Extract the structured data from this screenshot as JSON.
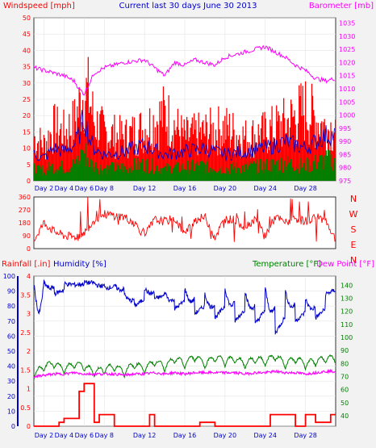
{
  "colors": {
    "wind": "#ff0000",
    "gust": "#ff0000",
    "avg_wind": "#0000cc",
    "barometer": "#ff00ff",
    "wind_dir": "#ff0000",
    "rain": "#ff0000",
    "humidity": "#0000cc",
    "temperature": "#008000",
    "dew_point": "#ff00ff",
    "title": "#0000cc",
    "panel_bg": "#ffffff",
    "page_bg": "#f2f2f2"
  },
  "chart_data": [
    {
      "type": "bar",
      "title": "Current last 30 days June 30 2013",
      "left_label": "Windspeed [mph]",
      "right_label": "Barometer [mb]",
      "x_ticks": [
        "Day 2",
        "Day 4",
        "Day 6",
        "Day 8",
        "Day 12",
        "Day 16",
        "Day 20",
        "Day 24",
        "Day 28"
      ],
      "x_tick_days": [
        2,
        4,
        6,
        8,
        12,
        16,
        20,
        24,
        28
      ],
      "x_range": [
        1,
        31
      ],
      "y_left_ticks": [
        "0",
        "5",
        "10",
        "15",
        "20",
        "25",
        "30",
        "35",
        "40",
        "45",
        "50"
      ],
      "ylim_left": [
        0,
        50
      ],
      "y_right_ticks": [
        "975",
        "980",
        "985",
        "990",
        "995",
        "1000",
        "1005",
        "1010",
        "1015",
        "1020",
        "1025",
        "1030",
        "1035"
      ],
      "ylim_right": [
        975,
        1037
      ],
      "series": [
        {
          "name": "Gust",
          "values_day": [
            1,
            2,
            3,
            4,
            5,
            6,
            6.5,
            7,
            8,
            10,
            12,
            14,
            16,
            18,
            20,
            22,
            24,
            26,
            28,
            30
          ],
          "values": [
            18,
            15,
            22,
            20,
            24,
            38,
            35,
            25,
            20,
            18,
            22,
            28,
            18,
            20,
            22,
            18,
            20,
            24,
            30,
            22
          ]
        },
        {
          "name": "Wind",
          "x": [
            1,
            2,
            3,
            4,
            5,
            5.5,
            6,
            6.5,
            7,
            8,
            10,
            12,
            14,
            16,
            18,
            20,
            22,
            24,
            26,
            28,
            30
          ],
          "values": [
            8,
            7,
            10,
            9,
            11,
            14,
            20,
            13,
            10,
            8,
            9,
            11,
            8,
            9,
            10,
            8,
            9,
            10,
            12,
            10,
            14
          ]
        },
        {
          "name": "Barometer",
          "x": [
            1,
            2,
            3,
            4,
            5,
            5.5,
            6,
            6.5,
            7,
            8,
            9,
            10,
            12,
            13,
            14,
            15,
            16,
            17,
            18,
            19,
            20,
            21,
            22,
            23,
            24,
            25,
            26,
            27,
            28,
            29,
            30,
            31
          ],
          "values": [
            1018,
            1017,
            1016,
            1015,
            1013,
            1010,
            1008,
            1012,
            1016,
            1018,
            1019,
            1020,
            1021,
            1018,
            1015,
            1020,
            1019,
            1021,
            1020,
            1019,
            1022,
            1023,
            1024,
            1025,
            1026,
            1024,
            1022,
            1019,
            1017,
            1014,
            1013,
            1014
          ]
        }
      ]
    },
    {
      "type": "line",
      "title": "",
      "y_ticks": [
        "0",
        "90",
        "180",
        "270",
        "360"
      ],
      "ylim": [
        0,
        360
      ],
      "direction_labels": [
        "N",
        "W",
        "S",
        "E",
        "N"
      ],
      "series": [
        {
          "name": "Wind direction",
          "x": [
            1,
            2,
            3,
            4,
            5,
            6,
            7,
            8,
            9,
            10,
            11,
            12,
            13,
            14,
            15,
            16,
            17,
            18,
            19,
            20,
            21,
            22,
            23,
            24,
            25,
            26,
            27,
            28,
            29,
            30,
            31
          ],
          "values": [
            60,
            180,
            120,
            90,
            80,
            110,
            200,
            240,
            230,
            220,
            180,
            90,
            200,
            190,
            210,
            100,
            200,
            220,
            80,
            210,
            200,
            150,
            210,
            90,
            220,
            180,
            210,
            190,
            220,
            200,
            60
          ]
        }
      ]
    },
    {
      "type": "line",
      "title": "",
      "left_labels": [
        "Rainfall [.in]",
        "Humidity [%]"
      ],
      "right_labels": [
        "Temperature [°F]",
        "Dew Point [°F]"
      ],
      "x_ticks": [
        "Day 2",
        "Day 4",
        "Day 6",
        "Day 8",
        "Day 12",
        "Day 16",
        "Day 20",
        "Day 24",
        "Day 28"
      ],
      "x_tick_days": [
        2,
        4,
        6,
        8,
        12,
        16,
        20,
        24,
        28
      ],
      "x_range": [
        1,
        31
      ],
      "humidity_ticks": [
        "0",
        "10",
        "20",
        "30",
        "40",
        "50",
        "60",
        "70",
        "80",
        "90",
        "100"
      ],
      "ylim_humidity": [
        0,
        100
      ],
      "rain_ticks": [
        "0",
        "0.5",
        "1",
        "1.5",
        "2",
        "2.5",
        "3",
        "3.5",
        "4"
      ],
      "ylim_rain": [
        0,
        4
      ],
      "temp_ticks": [
        "40",
        "50",
        "60",
        "70",
        "80",
        "90",
        "100",
        "110",
        "120",
        "130",
        "140"
      ],
      "ylim_temp": [
        32,
        147
      ],
      "series": [
        {
          "name": "Humidity",
          "x": [
            1,
            1.5,
            2,
            3,
            4,
            5,
            6,
            7,
            8,
            9,
            10,
            11,
            12,
            13,
            14,
            15,
            16,
            17,
            18,
            19,
            20,
            21,
            22,
            23,
            24,
            25,
            26,
            27,
            28,
            29,
            30,
            31
          ],
          "values": [
            95,
            75,
            96,
            88,
            95,
            94,
            96,
            95,
            92,
            94,
            88,
            80,
            92,
            85,
            90,
            78,
            92,
            75,
            88,
            72,
            92,
            70,
            90,
            68,
            92,
            62,
            90,
            70,
            85,
            72,
            88,
            95
          ]
        },
        {
          "name": "Temperature",
          "x": [
            1,
            2,
            3,
            4,
            5,
            6,
            7,
            8,
            9,
            10,
            11,
            12,
            13,
            14,
            15,
            16,
            17,
            18,
            19,
            20,
            21,
            22,
            23,
            24,
            25,
            26,
            27,
            28,
            29,
            30,
            31
          ],
          "values": [
            72,
            78,
            80,
            76,
            80,
            78,
            74,
            76,
            78,
            74,
            80,
            76,
            82,
            78,
            84,
            80,
            86,
            80,
            85,
            82,
            84,
            80,
            84,
            82,
            86,
            80,
            84,
            80,
            82,
            84,
            84
          ]
        },
        {
          "name": "Dew Point",
          "x": [
            1,
            2,
            3,
            4,
            5,
            6,
            7,
            8,
            9,
            10,
            11,
            12,
            13,
            14,
            15,
            16,
            17,
            18,
            19,
            20,
            21,
            22,
            23,
            24,
            25,
            26,
            27,
            28,
            29,
            30,
            31
          ],
          "values": [
            70,
            71,
            72,
            72,
            73,
            72,
            72,
            72,
            72,
            71,
            72,
            72,
            73,
            72,
            73,
            72,
            73,
            73,
            73,
            73,
            73,
            72,
            73,
            73,
            74,
            73,
            73,
            72,
            73,
            74,
            74
          ]
        },
        {
          "name": "Rainfall",
          "x": [
            1,
            3,
            3.5,
            4,
            5,
            5.5,
            6,
            6.5,
            7,
            7.5,
            8,
            9,
            10,
            12,
            12.5,
            13,
            17,
            17.5,
            19,
            20,
            24,
            24.5,
            25,
            27,
            28,
            29,
            30,
            30.5,
            31
          ],
          "values": [
            0,
            0,
            0.1,
            0.2,
            0.2,
            0.9,
            1.1,
            1.1,
            0.1,
            0.3,
            0.3,
            0,
            0,
            0,
            0.3,
            0,
            0,
            0.1,
            0,
            0,
            0,
            0.3,
            0.3,
            0,
            0.3,
            0.1,
            0.1,
            0.3,
            0.3
          ]
        }
      ]
    }
  ]
}
